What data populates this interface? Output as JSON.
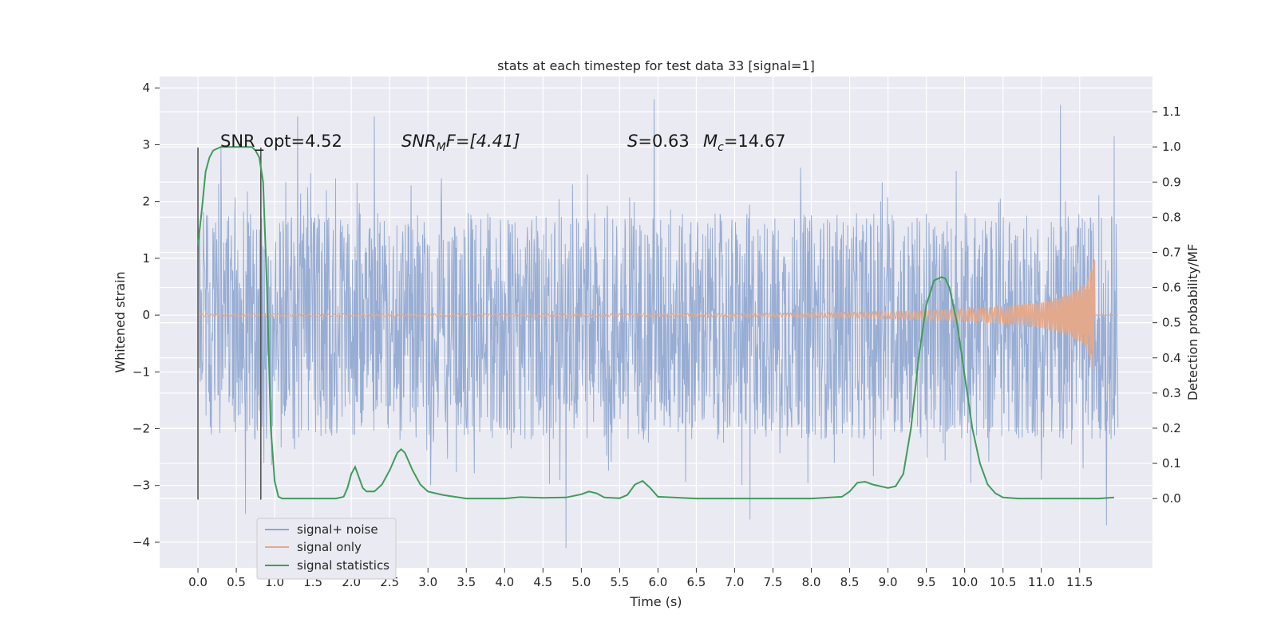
{
  "chart_data": {
    "type": "line",
    "title": "stats at each timestep for test data 33 [signal=1]",
    "xlabel": "Time (s)",
    "ylabel": "Whitened strain",
    "y2label": "Detection probability/MF",
    "xlim": [
      -0.5,
      12.45
    ],
    "ylim": [
      -4.45,
      4.2
    ],
    "y2lim": [
      -0.197,
      1.2
    ],
    "x_ticks": [
      "0.0",
      "0.5",
      "1.0",
      "1.5",
      "2.0",
      "2.5",
      "3.0",
      "3.5",
      "4.0",
      "4.5",
      "5.0",
      "5.5",
      "6.0",
      "6.5",
      "7.0",
      "7.5",
      "8.0",
      "8.5",
      "9.0",
      "9.5",
      "10.0",
      "10.5",
      "11.0",
      "11.5"
    ],
    "y_ticks": [
      "−4",
      "−3",
      "−2",
      "−1",
      "0",
      "1",
      "2",
      "3",
      "4"
    ],
    "y2_ticks": [
      "0.0",
      "0.1",
      "0.2",
      "0.3",
      "0.4",
      "0.5",
      "0.6",
      "0.7",
      "0.8",
      "0.9",
      "1.0",
      "1.1"
    ],
    "grid": true,
    "legend_position": "lower-left",
    "colors": {
      "background": "#eaeaf2",
      "grid": "#ffffff",
      "noise": "#8fa6cf",
      "signal": "#e3a98c",
      "stats": "#3f9c5a",
      "markers": "#555555"
    },
    "series": [
      {
        "name": "signal+ noise",
        "key": "noise",
        "description_values": {
          "x_range": [
            0.0,
            12.0
          ],
          "typical_band": [
            -2.1,
            1.7
          ],
          "peaks_high": [
            [
              0.3,
              2.95
            ],
            [
              1.3,
              3.5
            ],
            [
              2.3,
              3.5
            ],
            [
              5.95,
              3.8
            ],
            [
              11.25,
              3.7
            ],
            [
              11.95,
              3.15
            ]
          ],
          "peaks_low": [
            [
              0.62,
              -3.5
            ],
            [
              4.8,
              -4.1
            ],
            [
              7.2,
              -3.6
            ],
            [
              11.85,
              -3.7
            ]
          ]
        }
      },
      {
        "name": "signal only",
        "key": "signal",
        "chirp_end_time": 11.7,
        "peak_amplitude": 0.98,
        "min_amplitude": -0.82
      },
      {
        "name": "signal statistics",
        "key": "stats",
        "axis": "right",
        "x": [
          0.0,
          0.05,
          0.1,
          0.15,
          0.2,
          0.3,
          0.5,
          0.7,
          0.75,
          0.8,
          0.85,
          0.9,
          0.95,
          1.0,
          1.05,
          1.1,
          1.2,
          1.5,
          1.8,
          1.9,
          1.95,
          2.0,
          2.05,
          2.1,
          2.15,
          2.2,
          2.3,
          2.4,
          2.5,
          2.6,
          2.65,
          2.7,
          2.8,
          2.9,
          3.0,
          3.2,
          3.5,
          4.0,
          4.2,
          4.5,
          4.8,
          5.0,
          5.1,
          5.2,
          5.3,
          5.5,
          5.6,
          5.7,
          5.8,
          5.9,
          6.0,
          6.5,
          7.0,
          8.0,
          8.4,
          8.5,
          8.6,
          8.7,
          8.8,
          9.0,
          9.1,
          9.2,
          9.3,
          9.4,
          9.5,
          9.6,
          9.7,
          9.75,
          9.8,
          9.9,
          10.0,
          10.1,
          10.2,
          10.3,
          10.4,
          10.5,
          10.7,
          11.0,
          11.5,
          11.75,
          11.95
        ],
        "y": [
          0.72,
          0.82,
          0.93,
          0.97,
          0.99,
          1.0,
          1.0,
          1.0,
          0.99,
          0.97,
          0.9,
          0.6,
          0.2,
          0.05,
          0.005,
          0.0,
          0.0,
          0.0,
          0.0,
          0.005,
          0.03,
          0.07,
          0.09,
          0.06,
          0.03,
          0.02,
          0.02,
          0.04,
          0.08,
          0.13,
          0.14,
          0.13,
          0.08,
          0.04,
          0.02,
          0.01,
          0.0,
          0.0,
          0.004,
          0.002,
          0.003,
          0.012,
          0.02,
          0.015,
          0.003,
          0.001,
          0.01,
          0.04,
          0.05,
          0.03,
          0.005,
          0.0,
          0.0,
          0.0,
          0.005,
          0.02,
          0.045,
          0.048,
          0.04,
          0.03,
          0.035,
          0.07,
          0.2,
          0.4,
          0.55,
          0.62,
          0.63,
          0.625,
          0.6,
          0.5,
          0.35,
          0.2,
          0.1,
          0.04,
          0.015,
          0.003,
          0.0,
          0.0,
          0.0,
          0.0,
          0.003
        ]
      }
    ],
    "vertical_markers": [
      {
        "x": 0.0,
        "y_range": [
          -3.25,
          2.95
        ]
      },
      {
        "x": 0.82,
        "y_range": [
          -3.25,
          2.95
        ]
      }
    ],
    "annotations": {
      "snr_opt": "SNR_opt=4.52",
      "snr_mf_sym": "SNR",
      "snr_mf_sub": "M",
      "snr_mf_rest": "F=[4.41]",
      "s_sym": "S",
      "s_rest": "=0.63",
      "mc_sym": "M",
      "mc_sub": "c",
      "mc_rest": "=14.67"
    }
  }
}
